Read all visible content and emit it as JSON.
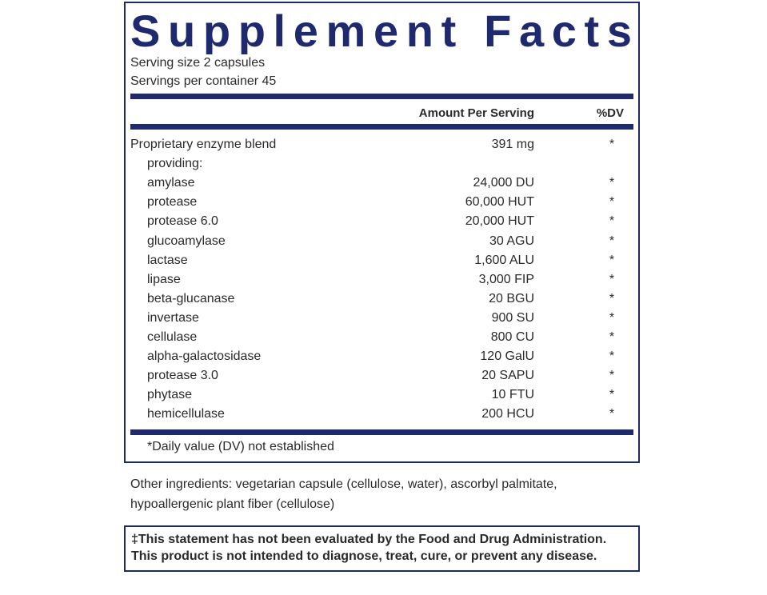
{
  "header": {
    "title": "Supplement Facts",
    "serving_size": "Serving size  2 capsules",
    "servings_per_container": "Servings per container  45"
  },
  "columns": {
    "amount": "Amount Per Serving",
    "dv": "%DV"
  },
  "blend": {
    "name": "Proprietary enzyme blend",
    "amount": "391 mg",
    "dv": "*",
    "note": "providing:",
    "components": [
      {
        "name": "amylase",
        "amount": "24,000 DU",
        "dv": "*"
      },
      {
        "name": "protease",
        "amount": "60,000 HUT",
        "dv": "*"
      },
      {
        "name": "protease 6.0",
        "amount": "20,000 HUT",
        "dv": "*"
      },
      {
        "name": "glucoamylase",
        "amount": "30 AGU",
        "dv": "*"
      },
      {
        "name": "lactase",
        "amount": "1,600 ALU",
        "dv": "*"
      },
      {
        "name": "lipase",
        "amount": "3,000 FIP",
        "dv": "*"
      },
      {
        "name": "beta-glucanase",
        "amount": "20 BGU",
        "dv": "*"
      },
      {
        "name": "invertase",
        "amount": "900 SU",
        "dv": "*"
      },
      {
        "name": "cellulase",
        "amount": "800 CU",
        "dv": "*"
      },
      {
        "name": "alpha-galactosidase",
        "amount": "120 GalU",
        "dv": "*"
      },
      {
        "name": "protease 3.0",
        "amount": "20 SAPU",
        "dv": "*"
      },
      {
        "name": "phytase",
        "amount": "10 FTU",
        "dv": "*"
      },
      {
        "name": "hemicellulase",
        "amount": "200 HCU",
        "dv": "*"
      }
    ]
  },
  "footnote": "*Daily value (DV) not established",
  "other_ingredients": [
    "Other ingredients: vegetarian capsule (cellulose, water), ascorbyl palmitate,",
    "hypoallergenic plant fiber (cellulose)"
  ],
  "disclaimer": [
    "‡This statement has not been evaluated by the Food and Drug Administration.",
    "This product is not intended to diagnose, treat, cure, or prevent any disease."
  ]
}
